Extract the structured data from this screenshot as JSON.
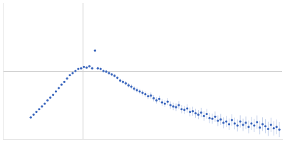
{
  "chart_data": {
    "type": "scatter",
    "color": "#3a66bd",
    "marker": "circle",
    "x": [
      40,
      44,
      48,
      52,
      56,
      60,
      64,
      68,
      72,
      76,
      80,
      84,
      88,
      92,
      96,
      100,
      104,
      108,
      112,
      116,
      120,
      124,
      128,
      132,
      136,
      140,
      144,
      148,
      152,
      156,
      160,
      164,
      168,
      172,
      176,
      180,
      184,
      188,
      192,
      196,
      200,
      204,
      208,
      212,
      216,
      220,
      224,
      228,
      232,
      236,
      240,
      244,
      248,
      252,
      256,
      260,
      264,
      268,
      272,
      276,
      280,
      284,
      288,
      292,
      296,
      300,
      304,
      308,
      312,
      316,
      320,
      324,
      328,
      332,
      336,
      340,
      344,
      348,
      352,
      356,
      360,
      364,
      368,
      372,
      376,
      380,
      384,
      388,
      392,
      396
    ],
    "values": [
      32,
      36,
      40,
      44,
      48,
      52,
      57,
      61,
      65,
      70,
      75,
      80,
      84,
      89,
      94,
      97,
      100,
      103,
      104,
      106,
      105,
      107,
      104,
      130,
      104,
      103,
      100,
      99,
      97,
      95,
      93,
      90,
      86,
      84,
      82,
      79,
      77,
      74,
      72,
      70,
      68,
      66,
      63,
      64,
      60,
      57,
      59,
      54,
      52,
      55,
      50,
      48,
      47,
      50,
      44,
      43,
      45,
      40,
      41,
      38,
      36,
      39,
      34,
      37,
      31,
      30,
      33,
      27,
      29,
      24,
      26,
      22,
      28,
      23,
      20,
      26,
      21,
      24,
      18,
      23,
      20,
      25,
      17,
      22,
      19,
      15,
      21,
      16,
      18,
      14
    ],
    "errors": [
      0.5,
      0.5,
      0.5,
      0.5,
      0.5,
      0.5,
      0.5,
      0.5,
      0.6,
      0.6,
      0.6,
      0.7,
      0.7,
      0.8,
      0.8,
      0.9,
      1,
      1,
      1,
      1.2,
      1.2,
      1.3,
      1.4,
      1.5,
      1.6,
      1.8,
      2,
      2,
      2.2,
      2.4,
      2.5,
      2.6,
      2.8,
      3,
      3,
      3.2,
      3.4,
      3.5,
      3.6,
      3.8,
      4,
      4,
      4.2,
      4.4,
      4.5,
      4.6,
      4.8,
      5,
      5,
      5.2,
      5.4,
      5.5,
      5.6,
      5.8,
      6,
      6,
      6.2,
      6.4,
      6.5,
      6.6,
      6.8,
      7,
      7,
      7.2,
      7.4,
      7.5,
      7.6,
      7.8,
      8,
      8,
      8.2,
      8.4,
      8.5,
      8.6,
      8.8,
      9,
      9,
      9.2,
      9.4,
      9.5,
      9.6,
      9.8,
      10,
      10,
      10.2,
      10.4,
      10.5,
      10.6,
      10.8,
      11
    ],
    "xlim": [
      0,
      400
    ],
    "xticks": [
      115
    ],
    "ylim": [
      0,
      200
    ],
    "yticks": [
      100
    ],
    "grid": true,
    "tick_labels": false
  }
}
